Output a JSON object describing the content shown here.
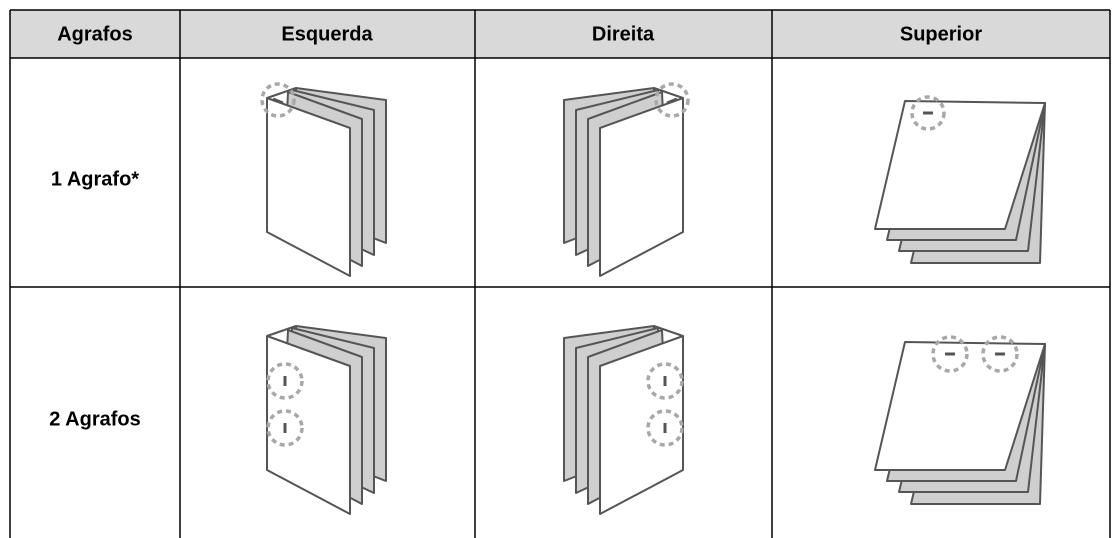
{
  "table": {
    "header": [
      "Agrafos",
      "Esquerda",
      "Direita",
      "Superior"
    ],
    "rows": [
      [
        "1 Agrafo*"
      ],
      [
        "2 Agrafos"
      ]
    ]
  }
}
